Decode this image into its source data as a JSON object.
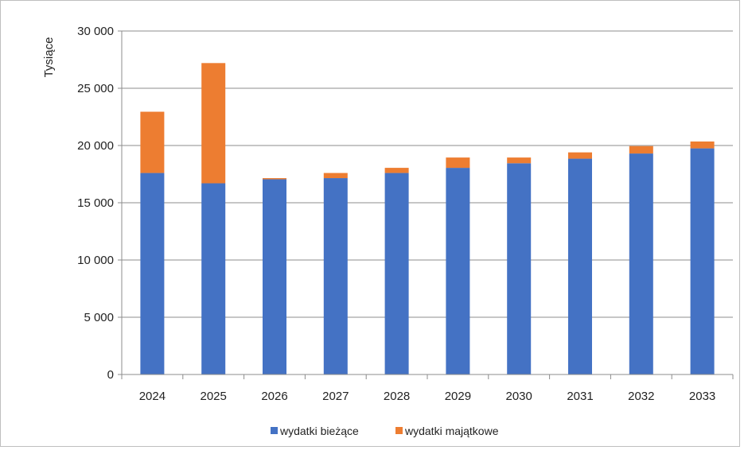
{
  "chart_data": {
    "type": "bar",
    "stacked": true,
    "title": "",
    "xlabel": "",
    "ylabel": "Tysiące",
    "categories": [
      "2024",
      "2025",
      "2026",
      "2027",
      "2028",
      "2029",
      "2030",
      "2031",
      "2032",
      "2033"
    ],
    "series": [
      {
        "name": "wydatki bieżące",
        "color": "#4472C4",
        "values": [
          17600,
          16700,
          17050,
          17150,
          17600,
          18050,
          18450,
          18850,
          19300,
          19750
        ]
      },
      {
        "name": "wydatki majątkowe",
        "color": "#ED7D31",
        "values": [
          5350,
          10500,
          100,
          450,
          450,
          900,
          500,
          550,
          650,
          600
        ]
      }
    ],
    "ylim": [
      0,
      30000
    ],
    "yticks": [
      0,
      5000,
      10000,
      15000,
      20000,
      25000,
      30000
    ],
    "ytick_labels": [
      "0",
      "5 000",
      "10 000",
      "15 000",
      "20 000",
      "25 000",
      "30 000"
    ],
    "grid": true,
    "legend_position": "bottom"
  }
}
